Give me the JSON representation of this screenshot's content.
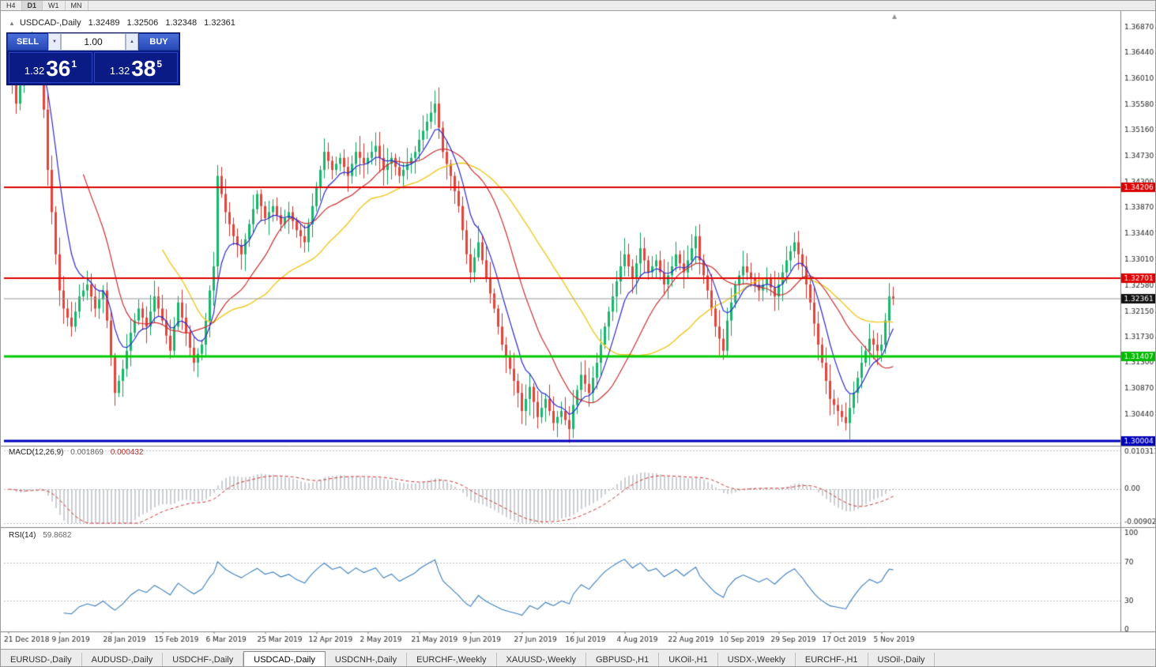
{
  "icons": {
    "title_arrow": "▲",
    "spin_up": "▲",
    "spin_down": "▼",
    "shift_marker": "▲"
  },
  "timeframe_bar": {
    "buttons": [
      {
        "label": "H4",
        "active": false
      },
      {
        "label": "D1",
        "active": true
      },
      {
        "label": "W1",
        "active": false
      },
      {
        "label": "MN",
        "active": false
      }
    ]
  },
  "chart_header": {
    "symbol": "USDCAD-,Daily",
    "open": "1.32489",
    "high": "1.32506",
    "low": "1.32348",
    "close": "1.32361"
  },
  "trade_panel": {
    "sell_label": "SELL",
    "buy_label": "BUY",
    "volume_value": "1.00",
    "bid": {
      "prefix": "1.32",
      "big": "36",
      "sup": "1"
    },
    "ask": {
      "prefix": "1.32",
      "big": "38",
      "sup": "5"
    }
  },
  "colors": {
    "up": "#0e9e5a",
    "up_fill": "#19b56b",
    "down": "#c8372f",
    "down_fill": "#e0453c",
    "ma_fast": "#2a2ad0",
    "ma_mid": "#cc2e2e",
    "ma_slow": "#f0c81e",
    "macd_hist": "#9aa0a6",
    "macd_signal": "#cc2e2e",
    "rsi_line": "#3a7ebf",
    "grid_dash": "#bbbbbb",
    "axis": "#808080",
    "text": "#222222"
  },
  "chart_data": {
    "type": "candlestick",
    "symbol": "USDCAD-",
    "timeframe": "Daily",
    "title": "USDCAD-,Daily",
    "ohlc_display": {
      "open": 1.32489,
      "high": 1.32506,
      "low": 1.32348,
      "close": 1.32361
    },
    "y_range": {
      "top": 1.3711,
      "bottom": 1.2995
    },
    "y_ticks": [
      "1.36870",
      "1.36440",
      "1.36010",
      "1.35580",
      "1.35160",
      "1.34730",
      "1.34300",
      "1.33870",
      "1.33440",
      "1.33010",
      "1.32580",
      "1.32150",
      "1.31730",
      "1.31300",
      "1.30870",
      "1.30440"
    ],
    "x_labels": [
      "21 Dec 2018",
      "9 Jan 2019",
      "28 Jan 2019",
      "15 Feb 2019",
      "6 Mar 2019",
      "25 Mar 2019",
      "12 Apr 2019",
      "2 May 2019",
      "21 May 2019",
      "9 Jun 2019",
      "27 Jun 2019",
      "16 Jul 2019",
      "4 Aug 2019",
      "22 Aug 2019",
      "10 Sep 2019",
      "29 Sep 2019",
      "17 Oct 2019",
      "5 Nov 2019"
    ],
    "x_label_indices": [
      0,
      13,
      26,
      39,
      52,
      65,
      78,
      91,
      104,
      117,
      130,
      143,
      156,
      169,
      182,
      195,
      208,
      221
    ],
    "closes": [
      1.363,
      1.3595,
      1.356,
      1.359,
      1.362,
      1.3645,
      1.366,
      1.364,
      1.365,
      1.355,
      1.345,
      1.338,
      1.331,
      1.325,
      1.322,
      1.3205,
      1.319,
      1.3215,
      1.324,
      1.325,
      1.326,
      1.324,
      1.322,
      1.3235,
      1.325,
      1.32,
      1.314,
      1.308,
      1.31,
      1.312,
      1.315,
      1.318,
      1.32,
      1.322,
      1.3205,
      1.319,
      1.3215,
      1.324,
      1.322,
      1.32,
      1.3175,
      1.315,
      1.319,
      1.323,
      1.3205,
      1.318,
      1.3155,
      1.313,
      1.3145,
      1.316,
      1.32,
      1.325,
      1.329,
      1.344,
      1.341,
      1.338,
      1.336,
      1.334,
      1.3325,
      1.331,
      1.3335,
      1.336,
      1.3385,
      1.341,
      1.339,
      1.337,
      1.338,
      1.339,
      1.3375,
      1.336,
      1.337,
      1.338,
      1.3365,
      1.335,
      1.334,
      1.333,
      1.336,
      1.339,
      1.342,
      1.345,
      1.348,
      1.3465,
      1.345,
      1.346,
      1.347,
      1.3455,
      1.344,
      1.346,
      1.348,
      1.347,
      1.346,
      1.347,
      1.348,
      1.349,
      1.347,
      1.345,
      1.346,
      1.347,
      1.3455,
      1.344,
      1.345,
      1.346,
      1.347,
      1.348,
      1.35,
      1.3515,
      1.353,
      1.3545,
      1.356,
      1.352,
      1.348,
      1.346,
      1.344,
      1.3415,
      1.339,
      1.335,
      1.331,
      1.328,
      1.3305,
      1.333,
      1.33,
      1.327,
      1.3245,
      1.322,
      1.319,
      1.316,
      1.314,
      1.312,
      1.31,
      1.308,
      1.305,
      1.307,
      1.309,
      1.3065,
      1.304,
      1.3055,
      1.307,
      1.305,
      1.303,
      1.304,
      1.305,
      1.3035,
      1.302,
      1.306,
      1.3085,
      1.311,
      1.3095,
      1.308,
      1.3105,
      1.313,
      1.316,
      1.319,
      1.3215,
      1.324,
      1.3265,
      1.329,
      1.331,
      1.329,
      1.327,
      1.3295,
      1.332,
      1.33,
      1.328,
      1.329,
      1.33,
      1.328,
      1.326,
      1.3275,
      1.329,
      1.331,
      1.3295,
      1.328,
      1.33,
      1.332,
      1.334,
      1.33,
      1.3275,
      1.325,
      1.322,
      1.319,
      1.317,
      1.315,
      1.32,
      1.323,
      1.326,
      1.3275,
      1.329,
      1.328,
      1.327,
      1.326,
      1.325,
      1.326,
      1.327,
      1.3255,
      1.324,
      1.326,
      1.328,
      1.33,
      1.3315,
      1.333,
      1.331,
      1.329,
      1.326,
      1.323,
      1.3195,
      1.316,
      1.313,
      1.31,
      1.307,
      1.306,
      1.305,
      1.304,
      1.303,
      1.3055,
      1.308,
      1.3105,
      1.313,
      1.315,
      1.317,
      1.316,
      1.315,
      1.316,
      1.32,
      1.324,
      1.3236
    ],
    "moving_averages": [
      {
        "name": "fast",
        "type": "ema",
        "period": 8,
        "color": "#2a2ad0"
      },
      {
        "name": "mid",
        "type": "sma",
        "period": 20,
        "color": "#cc2e2e"
      },
      {
        "name": "slow",
        "type": "sma",
        "period": 40,
        "color": "#f0c81e"
      }
    ],
    "levels": [
      {
        "price": 1.34206,
        "label": "1.34206",
        "line_color": "#dd0000",
        "tag_color": "#dd0000",
        "width": 2
      },
      {
        "price": 1.32701,
        "label": "1.32701",
        "line_color": "#dd0000",
        "tag_color": "#dd0000",
        "width": 2
      },
      {
        "price": 1.32361,
        "label": "1.32361",
        "line_color": "#999999",
        "tag_color": "#111111",
        "width": 1
      },
      {
        "price": 1.31407,
        "label": "1.31407",
        "line_color": "#00cc00",
        "tag_color": "#00bb00",
        "width": 3
      },
      {
        "price": 1.30004,
        "label": "1.30004",
        "line_color": "#0000bb",
        "tag_color": "#0000bb",
        "width": 3
      }
    ],
    "indicators": {
      "macd": {
        "label": "MACD(12,26,9)",
        "value_main": "0.001869",
        "value_signal": "0.000432",
        "fast": 12,
        "slow": 26,
        "signal": 9,
        "scale_max_label": "0.010311",
        "scale_mid_label": "0.00",
        "scale_min_label": "-0.009023",
        "scale_max": 0.010311,
        "scale_min": -0.009023
      },
      "rsi": {
        "label": "RSI(14)",
        "value": "59.8682",
        "period": 14,
        "scale_ticks": [
          "100",
          "70",
          "30",
          "0"
        ],
        "scale_tick_values": [
          100,
          70,
          30,
          0
        ],
        "level_lines": [
          70,
          30
        ]
      }
    }
  },
  "bottom_tabs": {
    "items": [
      {
        "label": "EURUSD-,Daily",
        "active": false
      },
      {
        "label": "AUDUSD-,Daily",
        "active": false
      },
      {
        "label": "USDCHF-,Daily",
        "active": false
      },
      {
        "label": "USDCAD-,Daily",
        "active": true
      },
      {
        "label": "USDCNH-,Daily",
        "active": false
      },
      {
        "label": "EURCHF-,Weekly",
        "active": false
      },
      {
        "label": "XAUUSD-,Weekly",
        "active": false
      },
      {
        "label": "GBPUSD-,H1",
        "active": false
      },
      {
        "label": "UKOil-,H1",
        "active": false
      },
      {
        "label": "USDX-,Weekly",
        "active": false
      },
      {
        "label": "EURCHF-,H1",
        "active": false
      },
      {
        "label": "USOil-,Daily",
        "active": false
      }
    ]
  }
}
